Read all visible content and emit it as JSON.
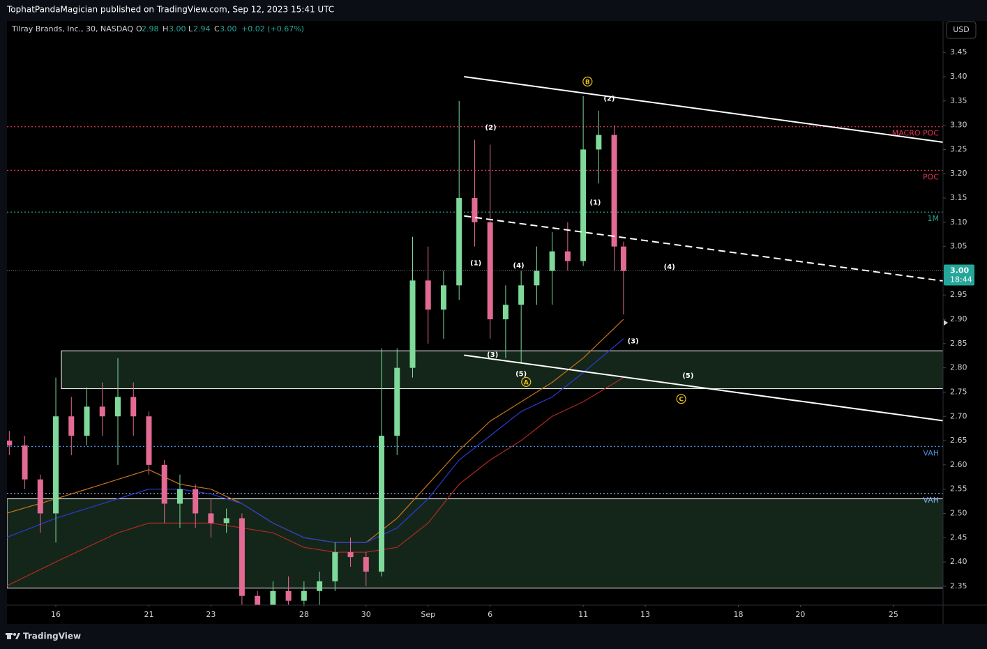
{
  "header": {
    "publisher": "TophatPandaMagician published on TradingView.com, Sep 12, 2023 15:41 UTC"
  },
  "legend": {
    "symbol": "Tilray Brands, Inc., 30, NASDAQ",
    "o_label": "O",
    "open": "2.98",
    "h_label": "H",
    "high": "3.00",
    "l_label": "L",
    "low": "2.94",
    "c_label": "C",
    "close": "3.00",
    "change": "+0.02 (+0.67%)"
  },
  "currency": "USD",
  "footer": {
    "brand": "TradingView"
  },
  "chart_data": {
    "type": "candlestick",
    "up_color": "#7ed99a",
    "down_color": "#e36a93",
    "x": [
      -1.5,
      -1,
      -0.5,
      0,
      0.5,
      1,
      1.5,
      2,
      2.5,
      3,
      3.5,
      4,
      4.5,
      5,
      5.5,
      6,
      6.5,
      7,
      7.5,
      8,
      8.5,
      9,
      9.5,
      10,
      10.5,
      11,
      11.5,
      12,
      12.5,
      13,
      13.5,
      14,
      14.5,
      15,
      15.5,
      16,
      16.5,
      17,
      17.5,
      18,
      18.3
    ],
    "open": [
      2.65,
      2.64,
      2.57,
      2.5,
      2.7,
      2.66,
      2.72,
      2.7,
      2.74,
      2.7,
      2.6,
      2.52,
      2.55,
      2.5,
      2.48,
      2.49,
      2.33,
      2.31,
      2.34,
      2.32,
      2.34,
      2.36,
      2.42,
      2.41,
      2.38,
      2.66,
      2.8,
      2.98,
      2.92,
      2.97,
      3.15,
      3.1,
      2.9,
      2.93,
      2.97,
      3.0,
      3.04,
      3.02,
      3.25,
      3.28,
      3.05
    ],
    "high": [
      2.67,
      2.66,
      2.58,
      2.78,
      2.74,
      2.76,
      2.77,
      2.82,
      2.77,
      2.71,
      2.61,
      2.58,
      2.56,
      2.53,
      2.51,
      2.5,
      2.34,
      2.36,
      2.37,
      2.36,
      2.38,
      2.44,
      2.45,
      2.42,
      2.84,
      2.84,
      3.07,
      3.05,
      3.0,
      3.35,
      3.27,
      3.26,
      2.97,
      3.0,
      3.05,
      3.08,
      3.1,
      3.36,
      3.33,
      3.3,
      3.06
    ],
    "low": [
      2.62,
      2.55,
      2.46,
      2.44,
      2.62,
      2.64,
      2.66,
      2.6,
      2.66,
      2.58,
      2.48,
      2.47,
      2.47,
      2.45,
      2.46,
      2.3,
      2.29,
      2.29,
      2.3,
      2.29,
      2.31,
      2.34,
      2.39,
      2.35,
      2.37,
      2.62,
      2.78,
      2.85,
      2.86,
      2.94,
      3.05,
      2.86,
      2.82,
      2.81,
      2.93,
      2.93,
      3.0,
      3.01,
      3.18,
      3.0,
      2.91
    ],
    "close": [
      2.64,
      2.57,
      2.5,
      2.7,
      2.66,
      2.72,
      2.7,
      2.74,
      2.7,
      2.6,
      2.52,
      2.55,
      2.5,
      2.48,
      2.49,
      2.33,
      2.31,
      2.34,
      2.32,
      2.34,
      2.36,
      2.42,
      2.41,
      2.38,
      2.66,
      2.8,
      2.98,
      2.92,
      2.97,
      3.15,
      3.1,
      2.9,
      2.93,
      2.97,
      3.0,
      3.04,
      3.02,
      3.25,
      3.28,
      3.05,
      3.0
    ],
    "ma_x": [
      -1.6,
      0,
      2,
      3,
      4,
      5,
      6,
      7,
      8,
      9,
      10,
      11,
      12,
      13,
      14,
      15,
      16,
      17,
      18.3
    ],
    "moving_averages": [
      {
        "color": "#c8741e",
        "values": [
          2.5,
          2.53,
          2.57,
          2.59,
          2.56,
          2.55,
          2.52,
          2.48,
          2.45,
          2.44,
          2.44,
          2.49,
          2.56,
          2.63,
          2.69,
          2.73,
          2.77,
          2.82,
          2.9
        ]
      },
      {
        "color": "#2a3bd0",
        "values": [
          2.45,
          2.49,
          2.53,
          2.55,
          2.55,
          2.54,
          2.52,
          2.48,
          2.45,
          2.44,
          2.44,
          2.47,
          2.53,
          2.61,
          2.66,
          2.71,
          2.74,
          2.79,
          2.86
        ]
      },
      {
        "color": "#b02a22",
        "values": [
          2.35,
          2.4,
          2.46,
          2.48,
          2.48,
          2.48,
          2.47,
          2.46,
          2.43,
          2.42,
          2.42,
          2.43,
          2.48,
          2.56,
          2.61,
          2.65,
          2.7,
          2.73,
          2.78
        ]
      }
    ],
    "xlim": [
      -1.575,
      28.6
    ],
    "ylim": [
      2.311,
      3.515
    ],
    "xticks": [
      {
        "value": 0,
        "label": "16"
      },
      {
        "value": 3,
        "label": "21"
      },
      {
        "value": 5,
        "label": "23"
      },
      {
        "value": 8,
        "label": "28"
      },
      {
        "value": 10,
        "label": "30"
      },
      {
        "value": 12,
        "label": "Sep"
      },
      {
        "value": 14,
        "label": "6"
      },
      {
        "value": 17,
        "label": "11"
      },
      {
        "value": 19,
        "label": "13"
      },
      {
        "value": 22,
        "label": "18"
      },
      {
        "value": 24,
        "label": "20"
      },
      {
        "value": 27,
        "label": "25"
      }
    ],
    "yticks": [
      {
        "value": 2.35,
        "label": "2.35"
      },
      {
        "value": 2.4,
        "label": "2.40"
      },
      {
        "value": 2.45,
        "label": "2.45"
      },
      {
        "value": 2.5,
        "label": "2.50"
      },
      {
        "value": 2.55,
        "label": "2.55"
      },
      {
        "value": 2.6,
        "label": "2.60"
      },
      {
        "value": 2.65,
        "label": "2.65"
      },
      {
        "value": 2.7,
        "label": "2.70"
      },
      {
        "value": 2.75,
        "label": "2.75"
      },
      {
        "value": 2.8,
        "label": "2.80"
      },
      {
        "value": 2.85,
        "label": "2.85"
      },
      {
        "value": 2.9,
        "label": "2.90"
      },
      {
        "value": 2.95,
        "label": "2.95"
      },
      {
        "value": 3.0,
        "label": "3.00"
      },
      {
        "value": 3.05,
        "label": "3.05"
      },
      {
        "value": 3.1,
        "label": "3.10"
      },
      {
        "value": 3.15,
        "label": "3.15"
      },
      {
        "value": 3.2,
        "label": "3.20"
      },
      {
        "value": 3.25,
        "label": "3.25"
      },
      {
        "value": 3.3,
        "label": "3.30"
      },
      {
        "value": 3.35,
        "label": "3.35"
      },
      {
        "value": 3.4,
        "label": "3.40"
      },
      {
        "value": 3.45,
        "label": "3.45"
      }
    ],
    "levels": [
      {
        "value": 3.297,
        "label": "MACRO POC",
        "color": "#e0344f"
      },
      {
        "value": 3.207,
        "label": "POC",
        "color": "#e0344f"
      },
      {
        "value": 3.121,
        "label": "1M",
        "color": "#26a69a"
      },
      {
        "value": 2.638,
        "label": "VAH",
        "color": "#4a8fe0"
      },
      {
        "value": 2.541,
        "label": "VAH",
        "color": "#7fa9e8"
      }
    ],
    "zones": [
      {
        "from": 2.757,
        "to": 2.835,
        "x_start": 0.18
      },
      {
        "from": 2.346,
        "to": 2.53
      }
    ],
    "trendlines": [
      {
        "x": [
          13.16,
          28.6
        ],
        "y": [
          3.4,
          3.265
        ],
        "dashed": false
      },
      {
        "x": [
          13.16,
          28.6
        ],
        "y": [
          3.113,
          2.979
        ],
        "dashed": true
      },
      {
        "x": [
          13.16,
          28.6
        ],
        "y": [
          2.826,
          2.691
        ],
        "dashed": false
      }
    ],
    "last_price": {
      "value": 3.0,
      "label": "3.00",
      "countdown": "18:44"
    },
    "annotations": [
      {
        "text": "(2)",
        "x": 14.02,
        "y": 3.295
      },
      {
        "text": "(1)",
        "x": 13.54,
        "y": 3.016
      },
      {
        "text": "(4)",
        "x": 14.92,
        "y": 3.011
      },
      {
        "text": "(3)",
        "x": 14.08,
        "y": 2.827
      },
      {
        "text": "(5)",
        "x": 15.0,
        "y": 2.787
      },
      {
        "text": "A",
        "x": 15.16,
        "y": 2.771,
        "circled": true
      },
      {
        "text": "B",
        "x": 17.14,
        "y": 3.39,
        "circled": true
      },
      {
        "text": "(2)",
        "x": 17.84,
        "y": 3.355
      },
      {
        "text": "(1)",
        "x": 17.39,
        "y": 3.141
      },
      {
        "text": "(4)",
        "x": 19.78,
        "y": 3.008
      },
      {
        "text": "(3)",
        "x": 18.61,
        "y": 2.855
      },
      {
        "text": "(5)",
        "x": 20.38,
        "y": 2.784
      },
      {
        "text": "C",
        "x": 20.16,
        "y": 2.736,
        "circled": true
      }
    ]
  }
}
